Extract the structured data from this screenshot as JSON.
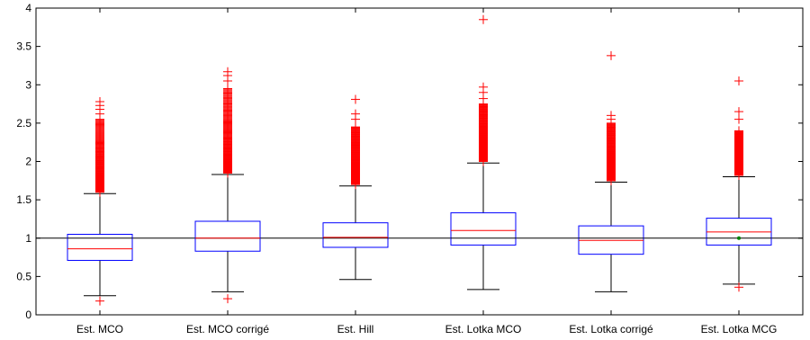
{
  "chart_data": {
    "type": "box",
    "title": "",
    "xlabel": "",
    "ylabel": "",
    "ylim": [
      0,
      4
    ],
    "yticks": [
      0,
      0.5,
      1,
      1.5,
      2,
      2.5,
      3,
      3.5,
      4
    ],
    "reference_line": 1,
    "categories": [
      "Est. MCO",
      "Est. MCO corrigé",
      "Est. Hill",
      "Est. Lotka MCO",
      "Est. Lotka corrigé",
      "Est. Lotka MCG"
    ],
    "boxes": [
      {
        "q1": 0.71,
        "median": 0.86,
        "q3": 1.05,
        "whisker_low": 0.25,
        "whisker_high": 1.58,
        "outliers_low": [
          0.18
        ],
        "outliers_high_range": [
          1.58,
          2.55
        ],
        "outliers_high_extra": [
          2.62,
          2.68,
          2.73,
          2.78
        ]
      },
      {
        "q1": 0.83,
        "median": 1.0,
        "q3": 1.22,
        "whisker_low": 0.3,
        "whisker_high": 1.83,
        "outliers_low": [
          0.21
        ],
        "outliers_high_range": [
          1.83,
          2.95
        ],
        "outliers_high_extra": [
          3.05,
          3.12,
          3.17
        ]
      },
      {
        "q1": 0.88,
        "median": 1.01,
        "q3": 1.2,
        "whisker_low": 0.46,
        "whisker_high": 1.68,
        "outliers_low": [],
        "outliers_high_range": [
          1.68,
          2.45
        ],
        "outliers_high_extra": [
          2.55,
          2.62,
          2.81
        ]
      },
      {
        "q1": 0.91,
        "median": 1.1,
        "q3": 1.33,
        "whisker_low": 0.33,
        "whisker_high": 1.98,
        "outliers_low": [],
        "outliers_high_range": [
          1.98,
          2.75
        ],
        "outliers_high_extra": [
          2.82,
          2.9,
          2.97,
          3.85
        ]
      },
      {
        "q1": 0.79,
        "median": 0.97,
        "q3": 1.16,
        "whisker_low": 0.3,
        "whisker_high": 1.73,
        "outliers_low": [],
        "outliers_high_range": [
          1.73,
          2.5
        ],
        "outliers_high_extra": [
          2.55,
          2.6,
          3.38
        ]
      },
      {
        "q1": 0.91,
        "median": 1.08,
        "q3": 1.26,
        "whisker_low": 0.4,
        "whisker_high": 1.8,
        "outliers_low": [
          0.36
        ],
        "outliers_high_range": [
          1.8,
          2.4
        ],
        "outliers_high_extra": [
          2.55,
          2.65,
          3.05
        ]
      }
    ],
    "colors": {
      "box": "#0000ff",
      "median": "#ff0000",
      "whisker": "#000000",
      "outlier": "#ff0000",
      "reference": "#000000",
      "mean_marker": "#008000"
    },
    "grid": false,
    "legend": "none"
  }
}
